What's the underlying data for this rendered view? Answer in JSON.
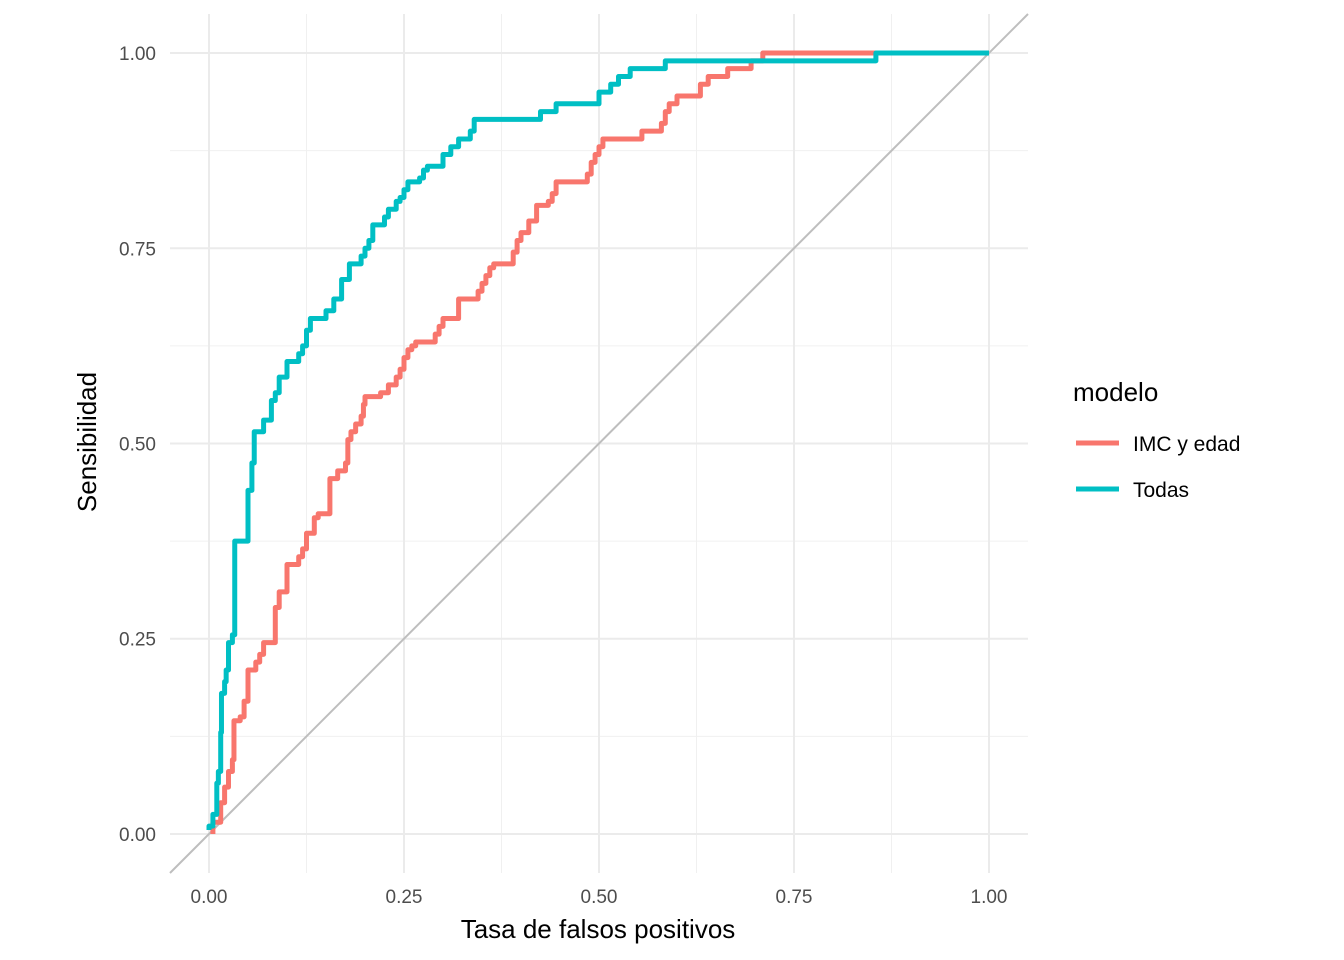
{
  "chart_data": {
    "type": "line",
    "title": "",
    "xlabel": "Tasa de falsos positivos",
    "ylabel": "Sensibilidad",
    "xlim": [
      -0.05,
      1.05
    ],
    "ylim": [
      -0.05,
      1.05
    ],
    "x_ticks": [
      0,
      0.25,
      0.5,
      0.75,
      1
    ],
    "x_tick_labels": [
      "0.00",
      "0.25",
      "0.50",
      "0.75",
      "1.00"
    ],
    "y_ticks": [
      0,
      0.25,
      0.5,
      0.75,
      1
    ],
    "y_tick_labels": [
      "0.00",
      "0.25",
      "0.50",
      "0.75",
      "1.00"
    ],
    "grid": true,
    "legend": {
      "title": "modelo",
      "position": "right"
    },
    "reference_line": {
      "x": [
        -0.05,
        1.05
      ],
      "y": [
        -0.05,
        1.05
      ],
      "color": "#bebebe"
    },
    "series": [
      {
        "name": "IMC y edad",
        "color": "#F8766D",
        "points": [
          [
            0.005,
            0.0
          ],
          [
            0.005,
            0.015
          ],
          [
            0.015,
            0.015
          ],
          [
            0.015,
            0.04
          ],
          [
            0.02,
            0.04
          ],
          [
            0.02,
            0.06
          ],
          [
            0.025,
            0.06
          ],
          [
            0.025,
            0.08
          ],
          [
            0.03,
            0.08
          ],
          [
            0.03,
            0.095
          ],
          [
            0.032,
            0.095
          ],
          [
            0.032,
            0.145
          ],
          [
            0.04,
            0.145
          ],
          [
            0.04,
            0.15
          ],
          [
            0.045,
            0.15
          ],
          [
            0.045,
            0.17
          ],
          [
            0.05,
            0.17
          ],
          [
            0.05,
            0.21
          ],
          [
            0.06,
            0.21
          ],
          [
            0.06,
            0.22
          ],
          [
            0.065,
            0.22
          ],
          [
            0.065,
            0.23
          ],
          [
            0.07,
            0.23
          ],
          [
            0.07,
            0.245
          ],
          [
            0.085,
            0.245
          ],
          [
            0.085,
            0.29
          ],
          [
            0.09,
            0.29
          ],
          [
            0.09,
            0.31
          ],
          [
            0.1,
            0.31
          ],
          [
            0.1,
            0.345
          ],
          [
            0.115,
            0.345
          ],
          [
            0.115,
            0.355
          ],
          [
            0.12,
            0.355
          ],
          [
            0.12,
            0.365
          ],
          [
            0.125,
            0.365
          ],
          [
            0.125,
            0.385
          ],
          [
            0.135,
            0.385
          ],
          [
            0.135,
            0.405
          ],
          [
            0.14,
            0.405
          ],
          [
            0.14,
            0.41
          ],
          [
            0.155,
            0.41
          ],
          [
            0.155,
            0.455
          ],
          [
            0.165,
            0.455
          ],
          [
            0.165,
            0.465
          ],
          [
            0.175,
            0.465
          ],
          [
            0.175,
            0.475
          ],
          [
            0.178,
            0.475
          ],
          [
            0.178,
            0.505
          ],
          [
            0.182,
            0.505
          ],
          [
            0.182,
            0.515
          ],
          [
            0.188,
            0.515
          ],
          [
            0.188,
            0.525
          ],
          [
            0.195,
            0.525
          ],
          [
            0.195,
            0.535
          ],
          [
            0.198,
            0.535
          ],
          [
            0.198,
            0.55
          ],
          [
            0.2,
            0.55
          ],
          [
            0.2,
            0.56
          ],
          [
            0.22,
            0.56
          ],
          [
            0.22,
            0.565
          ],
          [
            0.23,
            0.565
          ],
          [
            0.23,
            0.575
          ],
          [
            0.24,
            0.575
          ],
          [
            0.24,
            0.585
          ],
          [
            0.245,
            0.585
          ],
          [
            0.245,
            0.595
          ],
          [
            0.25,
            0.595
          ],
          [
            0.25,
            0.61
          ],
          [
            0.255,
            0.61
          ],
          [
            0.255,
            0.62
          ],
          [
            0.26,
            0.62
          ],
          [
            0.26,
            0.625
          ],
          [
            0.265,
            0.625
          ],
          [
            0.265,
            0.63
          ],
          [
            0.29,
            0.63
          ],
          [
            0.29,
            0.64
          ],
          [
            0.295,
            0.64
          ],
          [
            0.295,
            0.65
          ],
          [
            0.3,
            0.65
          ],
          [
            0.3,
            0.66
          ],
          [
            0.32,
            0.66
          ],
          [
            0.32,
            0.685
          ],
          [
            0.345,
            0.685
          ],
          [
            0.345,
            0.695
          ],
          [
            0.35,
            0.695
          ],
          [
            0.35,
            0.705
          ],
          [
            0.355,
            0.705
          ],
          [
            0.355,
            0.715
          ],
          [
            0.36,
            0.715
          ],
          [
            0.36,
            0.725
          ],
          [
            0.365,
            0.725
          ],
          [
            0.365,
            0.73
          ],
          [
            0.39,
            0.73
          ],
          [
            0.39,
            0.745
          ],
          [
            0.395,
            0.745
          ],
          [
            0.395,
            0.76
          ],
          [
            0.4,
            0.76
          ],
          [
            0.4,
            0.77
          ],
          [
            0.41,
            0.77
          ],
          [
            0.41,
            0.785
          ],
          [
            0.42,
            0.785
          ],
          [
            0.42,
            0.805
          ],
          [
            0.435,
            0.805
          ],
          [
            0.435,
            0.81
          ],
          [
            0.44,
            0.81
          ],
          [
            0.44,
            0.82
          ],
          [
            0.445,
            0.82
          ],
          [
            0.445,
            0.835
          ],
          [
            0.485,
            0.835
          ],
          [
            0.485,
            0.845
          ],
          [
            0.49,
            0.845
          ],
          [
            0.49,
            0.86
          ],
          [
            0.495,
            0.86
          ],
          [
            0.495,
            0.87
          ],
          [
            0.5,
            0.87
          ],
          [
            0.5,
            0.88
          ],
          [
            0.505,
            0.88
          ],
          [
            0.505,
            0.89
          ],
          [
            0.555,
            0.89
          ],
          [
            0.555,
            0.9
          ],
          [
            0.58,
            0.9
          ],
          [
            0.58,
            0.91
          ],
          [
            0.585,
            0.91
          ],
          [
            0.585,
            0.925
          ],
          [
            0.59,
            0.925
          ],
          [
            0.59,
            0.935
          ],
          [
            0.6,
            0.935
          ],
          [
            0.6,
            0.945
          ],
          [
            0.63,
            0.945
          ],
          [
            0.63,
            0.96
          ],
          [
            0.64,
            0.96
          ],
          [
            0.64,
            0.97
          ],
          [
            0.665,
            0.97
          ],
          [
            0.665,
            0.975
          ],
          [
            0.665,
            0.975
          ],
          [
            0.665,
            0.98
          ],
          [
            0.695,
            0.98
          ],
          [
            0.695,
            0.99
          ],
          [
            0.71,
            0.99
          ],
          [
            0.71,
            1.0
          ],
          [
            0.85,
            1.0
          ],
          [
            1.0,
            1.0
          ]
        ]
      },
      {
        "name": "Todas",
        "color": "#00BFC4",
        "points": [
          [
            0.0,
            0.005
          ],
          [
            0.0,
            0.01
          ],
          [
            0.005,
            0.01
          ],
          [
            0.005,
            0.025
          ],
          [
            0.01,
            0.025
          ],
          [
            0.01,
            0.065
          ],
          [
            0.012,
            0.065
          ],
          [
            0.012,
            0.08
          ],
          [
            0.015,
            0.08
          ],
          [
            0.015,
            0.13
          ],
          [
            0.016,
            0.13
          ],
          [
            0.016,
            0.18
          ],
          [
            0.02,
            0.18
          ],
          [
            0.02,
            0.195
          ],
          [
            0.022,
            0.195
          ],
          [
            0.022,
            0.21
          ],
          [
            0.025,
            0.21
          ],
          [
            0.025,
            0.245
          ],
          [
            0.03,
            0.245
          ],
          [
            0.03,
            0.255
          ],
          [
            0.033,
            0.255
          ],
          [
            0.033,
            0.375
          ],
          [
            0.05,
            0.375
          ],
          [
            0.05,
            0.44
          ],
          [
            0.055,
            0.44
          ],
          [
            0.055,
            0.475
          ],
          [
            0.058,
            0.475
          ],
          [
            0.058,
            0.515
          ],
          [
            0.07,
            0.515
          ],
          [
            0.07,
            0.53
          ],
          [
            0.08,
            0.53
          ],
          [
            0.08,
            0.555
          ],
          [
            0.085,
            0.555
          ],
          [
            0.085,
            0.565
          ],
          [
            0.09,
            0.565
          ],
          [
            0.09,
            0.585
          ],
          [
            0.1,
            0.585
          ],
          [
            0.1,
            0.605
          ],
          [
            0.115,
            0.605
          ],
          [
            0.115,
            0.615
          ],
          [
            0.12,
            0.615
          ],
          [
            0.12,
            0.625
          ],
          [
            0.125,
            0.625
          ],
          [
            0.125,
            0.645
          ],
          [
            0.13,
            0.645
          ],
          [
            0.13,
            0.66
          ],
          [
            0.15,
            0.66
          ],
          [
            0.15,
            0.67
          ],
          [
            0.16,
            0.67
          ],
          [
            0.16,
            0.685
          ],
          [
            0.17,
            0.685
          ],
          [
            0.17,
            0.71
          ],
          [
            0.18,
            0.71
          ],
          [
            0.18,
            0.73
          ],
          [
            0.195,
            0.73
          ],
          [
            0.195,
            0.74
          ],
          [
            0.2,
            0.74
          ],
          [
            0.2,
            0.75
          ],
          [
            0.205,
            0.75
          ],
          [
            0.205,
            0.76
          ],
          [
            0.21,
            0.76
          ],
          [
            0.21,
            0.78
          ],
          [
            0.225,
            0.78
          ],
          [
            0.225,
            0.79
          ],
          [
            0.23,
            0.79
          ],
          [
            0.23,
            0.8
          ],
          [
            0.24,
            0.8
          ],
          [
            0.24,
            0.81
          ],
          [
            0.245,
            0.81
          ],
          [
            0.245,
            0.815
          ],
          [
            0.25,
            0.815
          ],
          [
            0.25,
            0.825
          ],
          [
            0.255,
            0.825
          ],
          [
            0.255,
            0.835
          ],
          [
            0.27,
            0.835
          ],
          [
            0.27,
            0.84
          ],
          [
            0.275,
            0.84
          ],
          [
            0.275,
            0.85
          ],
          [
            0.28,
            0.85
          ],
          [
            0.28,
            0.855
          ],
          [
            0.3,
            0.855
          ],
          [
            0.3,
            0.87
          ],
          [
            0.31,
            0.87
          ],
          [
            0.31,
            0.88
          ],
          [
            0.32,
            0.88
          ],
          [
            0.32,
            0.89
          ],
          [
            0.335,
            0.89
          ],
          [
            0.335,
            0.9
          ],
          [
            0.34,
            0.9
          ],
          [
            0.34,
            0.915
          ],
          [
            0.425,
            0.915
          ],
          [
            0.425,
            0.925
          ],
          [
            0.445,
            0.925
          ],
          [
            0.445,
            0.935
          ],
          [
            0.5,
            0.935
          ],
          [
            0.5,
            0.95
          ],
          [
            0.515,
            0.95
          ],
          [
            0.515,
            0.96
          ],
          [
            0.525,
            0.96
          ],
          [
            0.525,
            0.97
          ],
          [
            0.54,
            0.97
          ],
          [
            0.54,
            0.98
          ],
          [
            0.585,
            0.98
          ],
          [
            0.585,
            0.99
          ],
          [
            0.855,
            0.99
          ],
          [
            0.855,
            1.0
          ],
          [
            1.0,
            1.0
          ]
        ]
      }
    ]
  }
}
